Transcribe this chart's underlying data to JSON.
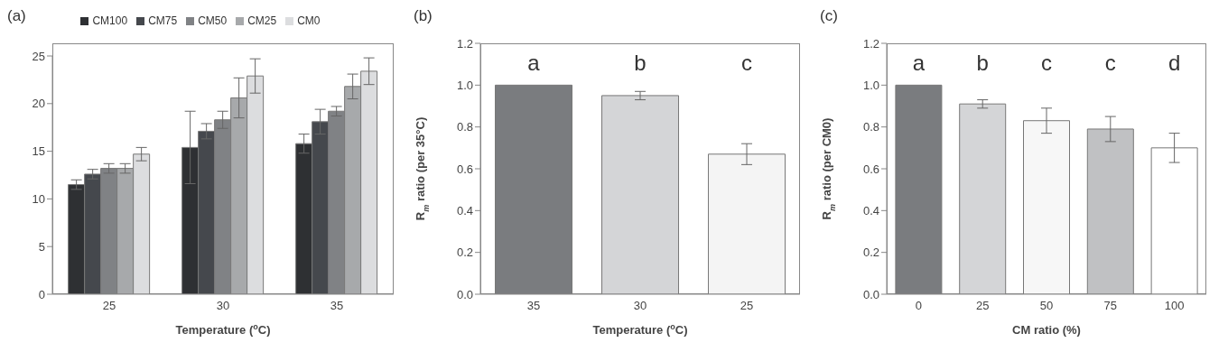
{
  "chart_data": [
    {
      "type": "bar",
      "title": "(a)",
      "xlabel": "Temperature ($^{o}$C)",
      "categories": [
        "25",
        "30",
        "35"
      ],
      "legend": "top",
      "series": [
        {
          "name": "CM100",
          "color": "#2e3033",
          "values": [
            11.5,
            15.4,
            15.8
          ],
          "errors": [
            0.5,
            3.8,
            1.0
          ]
        },
        {
          "name": "CM75",
          "color": "#45484d",
          "values": [
            12.6,
            17.1,
            18.1
          ],
          "errors": [
            0.5,
            0.8,
            1.3
          ]
        },
        {
          "name": "CM50",
          "color": "#808285",
          "values": [
            13.2,
            18.3,
            19.2
          ],
          "errors": [
            0.5,
            0.9,
            0.5
          ]
        },
        {
          "name": "CM25",
          "color": "#a7a9ab",
          "values": [
            13.2,
            20.6,
            21.8
          ],
          "errors": [
            0.5,
            2.1,
            1.3
          ]
        },
        {
          "name": "CM0",
          "color": "#dcdddf",
          "values": [
            14.7,
            22.9,
            23.4
          ],
          "errors": [
            0.7,
            1.8,
            1.4
          ]
        }
      ],
      "ylim": [
        0,
        25
      ],
      "yticks": [
        0,
        5,
        10,
        15,
        20,
        25
      ],
      "grid": false
    },
    {
      "type": "bar",
      "title": "(b)",
      "xlabel": "Temperature ($^{o}$C)",
      "ylabel": "R$_{m}$ ratio (per 35°C)",
      "categories": [
        "35",
        "30",
        "25"
      ],
      "values": [
        1.0,
        0.95,
        0.67
      ],
      "errors": [
        null,
        0.02,
        0.05
      ],
      "colors": [
        "#7a7c7f",
        "#d4d5d7",
        "#f4f4f4"
      ],
      "ylim": [
        0,
        1.2
      ],
      "yticks": [
        {
          "value": 0,
          "label": "0.0"
        },
        {
          "value": 0.2,
          "label": "0.2"
        },
        {
          "value": 0.4,
          "label": "0.4"
        },
        {
          "value": 0.6,
          "label": "0.6"
        },
        {
          "value": 0.8,
          "label": "0.8"
        },
        {
          "value": 1.0,
          "label": "1.0"
        },
        {
          "value": 1.2,
          "label": "1.2"
        }
      ],
      "grid": false,
      "annotations": [
        "a",
        "b",
        "c"
      ]
    },
    {
      "type": "bar",
      "title": "(c)",
      "xlabel": "CM ratio (%)",
      "ylabel": "R$_{m}$ ratio (per CM0)",
      "categories": [
        "0",
        "25",
        "50",
        "75",
        "100"
      ],
      "values": [
        1.0,
        0.91,
        0.83,
        0.79,
        0.7
      ],
      "errors": [
        null,
        0.02,
        0.06,
        0.06,
        0.07
      ],
      "colors": [
        "#7a7c7f",
        "#d4d5d7",
        "#f7f7f7",
        "#c0c1c3",
        "#ffffff"
      ],
      "ylim": [
        0,
        1.2
      ],
      "yticks": [
        {
          "value": 0,
          "label": "0.0"
        },
        {
          "value": 0.2,
          "label": "0.2"
        },
        {
          "value": 0.4,
          "label": "0.4"
        },
        {
          "value": 0.6,
          "label": "0.6"
        },
        {
          "value": 0.8,
          "label": "0.8"
        },
        {
          "value": 1.0,
          "label": "1.0"
        },
        {
          "value": 1.2,
          "label": "1.2"
        }
      ],
      "grid": false,
      "annotations": [
        "a",
        "b",
        "c",
        "c",
        "d"
      ]
    }
  ]
}
